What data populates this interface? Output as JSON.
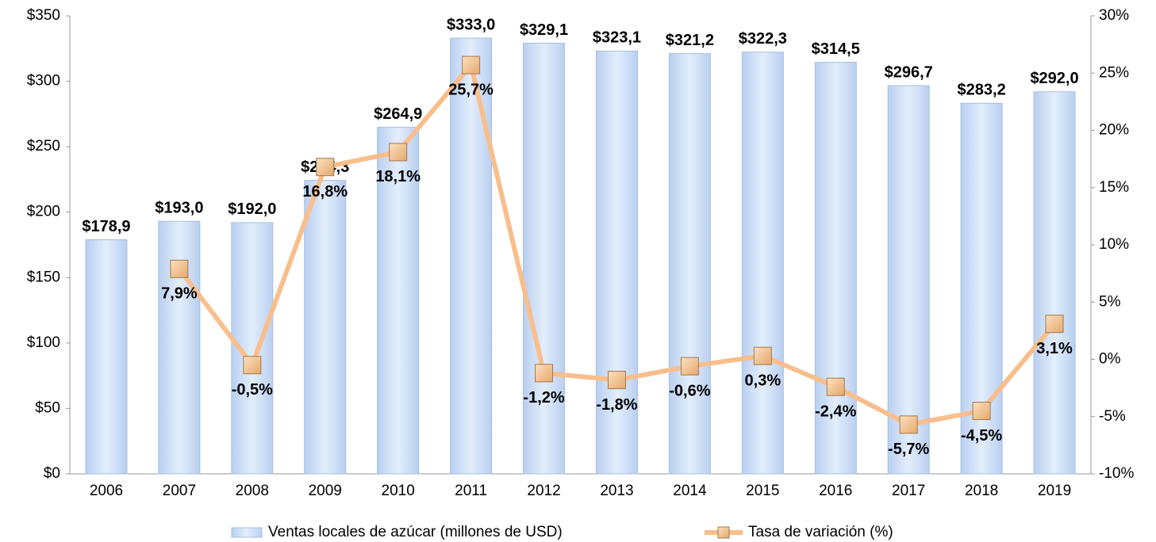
{
  "chart_data": {
    "type": "bar",
    "categories": [
      "2006",
      "2007",
      "2008",
      "2009",
      "2010",
      "2011",
      "2012",
      "2013",
      "2014",
      "2015",
      "2016",
      "2017",
      "2018",
      "2019"
    ],
    "series": [
      {
        "name": "Ventas locales de azúcar (millones de USD)",
        "type": "bar",
        "color": "#cfe0f8",
        "values": [
          178.9,
          193.0,
          192.0,
          224.3,
          264.9,
          333.0,
          329.1,
          323.1,
          321.2,
          322.3,
          314.5,
          296.7,
          283.2,
          292.0
        ],
        "value_labels": [
          "$178,9",
          "$193,0",
          "$192,0",
          "$224,3",
          "$264,9",
          "$333,0",
          "$329,1",
          "$323,1",
          "$321,2",
          "$322,3",
          "$314,5",
          "$296,7",
          "$283,2",
          "$292,0"
        ]
      },
      {
        "name": "Tasa de variación (%)",
        "type": "line",
        "axis": "y2",
        "color": "#f8be8c",
        "values": [
          null,
          7.9,
          -0.5,
          16.8,
          18.1,
          25.7,
          -1.2,
          -1.8,
          -0.6,
          0.3,
          -2.4,
          -5.7,
          -4.5,
          3.1
        ],
        "value_labels": [
          null,
          "7,9%",
          "-0,5%",
          "16,8%",
          "18,1%",
          "25,7%",
          "-1,2%",
          "-1,8%",
          "-0,6%",
          "0,3%",
          "-2,4%",
          "-5,7%",
          "-4,5%",
          "3,1%"
        ]
      }
    ],
    "ylim": [
      0,
      350
    ],
    "yticks": [
      {
        "value": 0,
        "label": "$0"
      },
      {
        "value": 50,
        "label": "$50"
      },
      {
        "value": 100,
        "label": "$100"
      },
      {
        "value": 150,
        "label": "$150"
      },
      {
        "value": 200,
        "label": "$200"
      },
      {
        "value": 250,
        "label": "$250"
      },
      {
        "value": 300,
        "label": "$300"
      },
      {
        "value": 350,
        "label": "$350"
      }
    ],
    "y2lim": [
      -10,
      30
    ],
    "y2ticks": [
      {
        "value": -10,
        "label": "-10%"
      },
      {
        "value": -5,
        "label": "-5%"
      },
      {
        "value": 0,
        "label": "0%"
      },
      {
        "value": 5,
        "label": "5%"
      },
      {
        "value": 10,
        "label": "10%"
      },
      {
        "value": 15,
        "label": "15%"
      },
      {
        "value": 20,
        "label": "20%"
      },
      {
        "value": 25,
        "label": "25%"
      },
      {
        "value": 30,
        "label": "30%"
      }
    ],
    "grid": false,
    "legend": "bottom"
  }
}
